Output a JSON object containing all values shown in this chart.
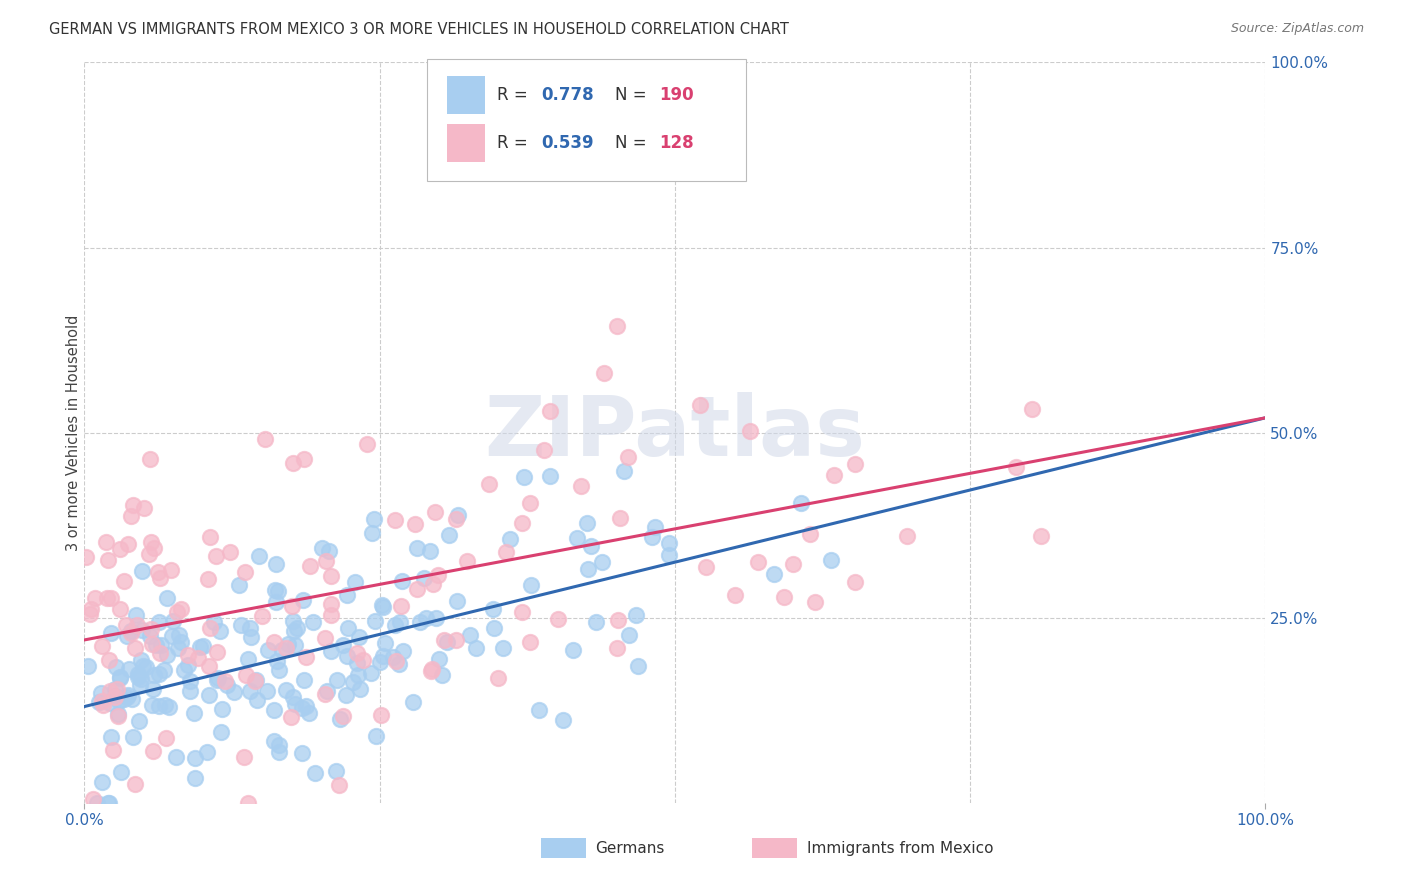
{
  "title": "GERMAN VS IMMIGRANTS FROM MEXICO 3 OR MORE VEHICLES IN HOUSEHOLD CORRELATION CHART",
  "source": "Source: ZipAtlas.com",
  "ylabel": "3 or more Vehicles in Household",
  "x_min": 0.0,
  "x_max": 1.0,
  "y_min": 0.0,
  "y_max": 1.0,
  "x_tick_positions": [
    0.0,
    1.0
  ],
  "x_tick_labels": [
    "0.0%",
    "100.0%"
  ],
  "y_tick_positions": [
    0.25,
    0.5,
    0.75,
    1.0
  ],
  "y_tick_labels": [
    "25.0%",
    "50.0%",
    "75.0%",
    "100.0%"
  ],
  "blue_R": 0.778,
  "blue_N": 190,
  "pink_R": 0.539,
  "pink_N": 128,
  "blue_scatter_color": "#A8CEF0",
  "pink_scatter_color": "#F5B8C8",
  "blue_line_color": "#3068B0",
  "pink_line_color": "#D94070",
  "blue_label": "Germans",
  "pink_label": "Immigrants from Mexico",
  "legend_R_N_color": "#3068B0",
  "legend_N_color": "#D94070",
  "tick_color": "#3068B0",
  "watermark_text": "ZIPatlas",
  "watermark_color": "#D0D8E8",
  "background_color": "#FFFFFF",
  "grid_color": "#CCCCCC",
  "title_fontsize": 10.5,
  "tick_fontsize": 11,
  "seed_blue": 12,
  "seed_pink": 77,
  "blue_intercept": 0.13,
  "blue_slope": 0.39,
  "pink_intercept": 0.22,
  "pink_slope": 0.3
}
